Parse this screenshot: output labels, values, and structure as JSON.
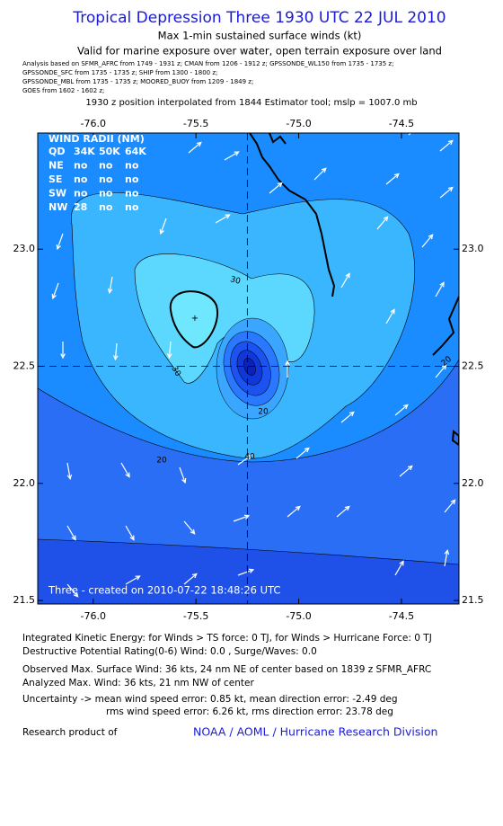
{
  "header": {
    "title": "Tropical Depression Three 1930 UTC 22 JUL 2010",
    "subtitle": "Max 1-min sustained surface winds (kt)",
    "validity": "Valid for marine exposure over water, open terrain exposure over land",
    "sources": [
      "Analysis based on  SFMR_AFRC from 1749 - 1931 z;  CMAN from 1206 - 1912 z;  GPSSONDE_WL150 from 1735 - 1735 z;",
      "GPSSONDE_SFC from 1735 - 1735 z;  SHIP from 1300 - 1800 z;",
      "GPSSONDE_MBL from 1735 - 1735 z;  MOORED_BUOY from 1209 - 1849 z;",
      "GOES from 1602 - 1602 z;"
    ],
    "position_note": "1930 z position interpolated from 1844 Estimator tool; mslp = 1007.0 mb"
  },
  "map": {
    "xlim": [
      -76.27,
      -74.22
    ],
    "ylim": [
      21.485,
      23.496
    ],
    "xticks": [
      {
        "value": -76,
        "label": "-76.0"
      },
      {
        "value": -75.5,
        "label": "-75.5"
      },
      {
        "value": -75,
        "label": "-75.0"
      },
      {
        "value": -74.5,
        "label": "-74.5"
      }
    ],
    "yticks": [
      21.5,
      {
        "value": 22,
        "label": "22.0"
      },
      22.5,
      {
        "value": 23,
        "label": "23.0"
      }
    ],
    "center": {
      "lon": -75.25,
      "lat": 22.5
    },
    "contour_labels": [
      "30",
      "30",
      "20",
      "20",
      "40",
      "20"
    ],
    "credit": "Three - created on 2010-07-22 18:48:26 UTC"
  },
  "wind_radii": {
    "title": "WIND RADII (NM)",
    "rows": [
      [
        "QD",
        "34K",
        "50K",
        "64K"
      ],
      [
        "NE",
        "no",
        "no",
        "no"
      ],
      [
        "SE",
        "no",
        "no",
        "no"
      ],
      [
        "SW",
        "no",
        "no",
        "no"
      ],
      [
        "NW",
        28,
        "no",
        "no"
      ]
    ]
  },
  "footer": {
    "lines": [
      "Integrated Kinetic Energy:  for Winds > TS force: 0 TJ,  for Winds > Hurricane Force: 0 TJ",
      "Destructive Potential Rating(0-6)   Wind: 0.0 , Surge/Waves: 0.0",
      "Observed Max. Surface Wind: 36 kts, 24 nm NE of center based on 1839 z SFMR_AFRC",
      "Analyzed Max. Wind: 36 kts, 21 nm NW of center",
      "Uncertainty -> mean wind speed error: 0.85 kt,   mean direction error:  -2.49 deg",
      "rms wind speed error: 6.26 kt,   rms direction error: 23.78 deg"
    ],
    "research_label": "Research product of",
    "organization": "NOAA / AOML / Hurricane Research Division"
  }
}
